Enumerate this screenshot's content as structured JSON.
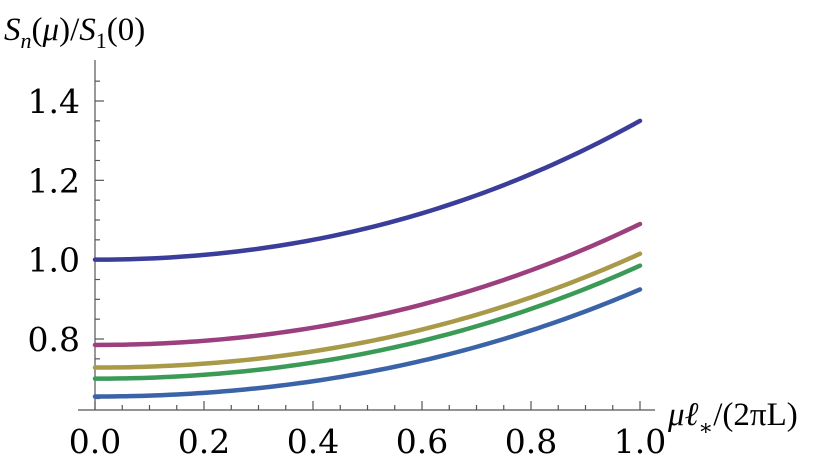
{
  "chart_data": {
    "type": "line",
    "xlabel": "μℓ∗/(2πL)",
    "ylabel": "Sn(μ)/S1(0)",
    "xlim": [
      0,
      1
    ],
    "ylim": [
      0.63,
      1.5
    ],
    "x_major_ticks": [
      0.0,
      0.2,
      0.4,
      0.6,
      0.8,
      1.0
    ],
    "x_tick_labels": [
      "0.0",
      "0.2",
      "0.4",
      "0.6",
      "0.8",
      "1.0"
    ],
    "y_major_ticks": [
      0.8,
      1.0,
      1.2,
      1.4
    ],
    "y_tick_labels": [
      "0.8",
      "1.0",
      "1.2",
      "1.4"
    ],
    "grid": false,
    "legend": "none",
    "series": [
      {
        "color": "#3b3d9a",
        "start": 1.0,
        "end": 1.35
      },
      {
        "color": "#9b3f7e",
        "start": 0.785,
        "end": 1.09
      },
      {
        "color": "#a89a48",
        "start": 0.728,
        "end": 1.015
      },
      {
        "color": "#3c9a57",
        "start": 0.7,
        "end": 0.985
      },
      {
        "color": "#3b64a8",
        "start": 0.655,
        "end": 0.925
      }
    ]
  }
}
